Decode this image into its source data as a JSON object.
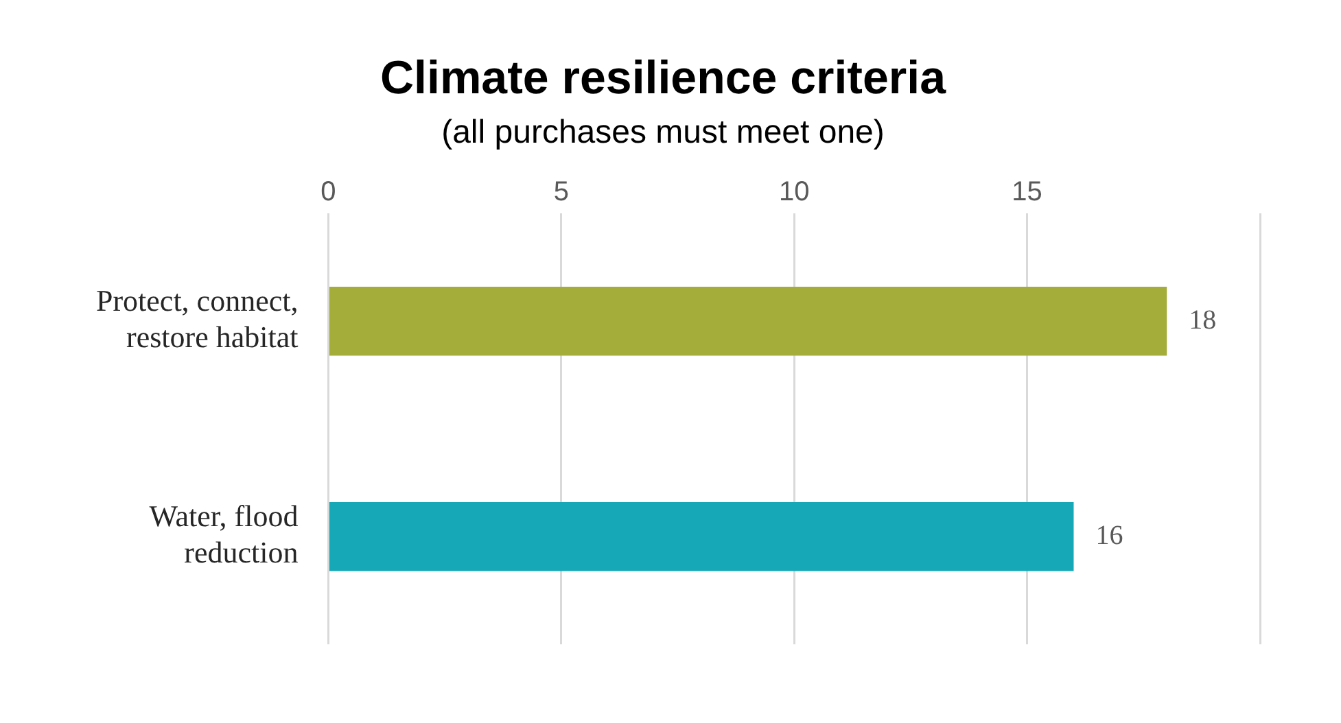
{
  "chart_data": {
    "type": "bar",
    "orientation": "horizontal",
    "title": "Climate resilience criteria",
    "subtitle": "(all purchases must meet one)",
    "categories": [
      "Protect, connect, restore habitat",
      "Water, flood reduction"
    ],
    "values": [
      18,
      16
    ],
    "colors": [
      "#a5ad3a",
      "#17a8b8"
    ],
    "xlim": [
      0,
      20
    ],
    "xticks": [
      0,
      5,
      10,
      15,
      {
        "value": 20,
        "label": null
      }
    ],
    "grid": "x",
    "data_labels": true,
    "legend": false
  }
}
